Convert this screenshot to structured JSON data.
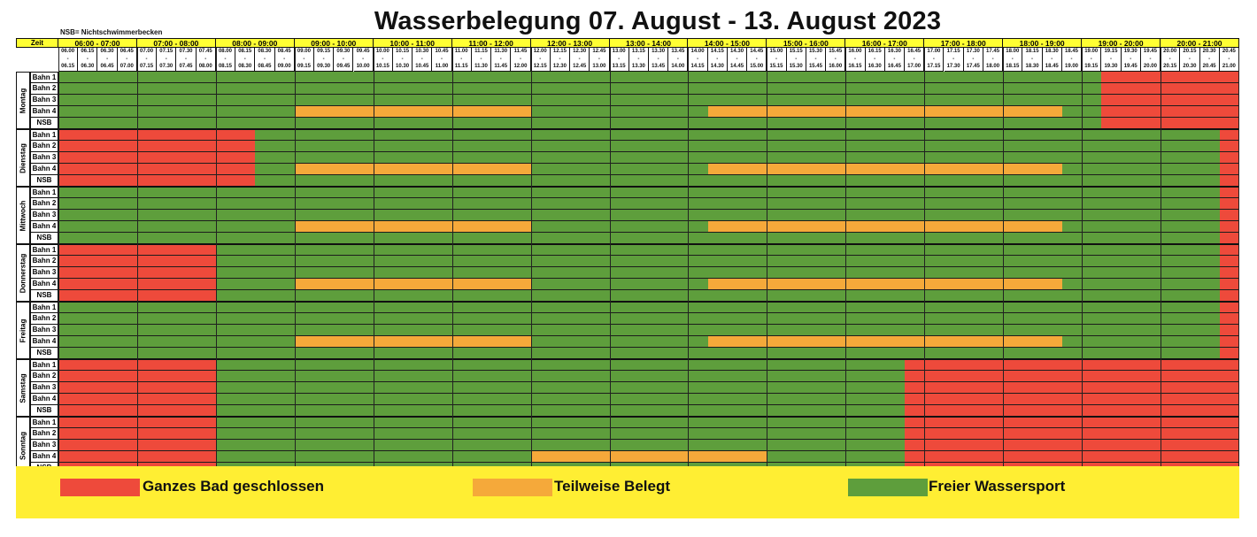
{
  "title": "Wasserbelegung 07. August - 13. August 2023",
  "nsb_note": "NSB= Nichtschwimmerbecken",
  "zeit_label": "Zeit",
  "colors": {
    "closed": "#ee4a3b",
    "partial": "#f5a93a",
    "free": "#5e9e3c",
    "header": "#ffff33",
    "legend_bg": "#ffee33"
  },
  "hours": [
    "06:00 - 07:00",
    "07:00 - 08:00",
    "08:00 - 09:00",
    "09:00 - 10:00",
    "10:00 - 11:00",
    "11:00 - 12:00",
    "12:00 - 13:00",
    "13:00 - 14:00",
    "14:00 - 15:00",
    "15:00 - 16:00",
    "16:00 - 17:00",
    "17:00 - 18:00",
    "18:00 - 19:00",
    "19:00 - 20:00",
    "20:00 - 21:00"
  ],
  "slots": [
    {
      "from": "06.00",
      "to": "06.15"
    },
    {
      "from": "06.15",
      "to": "06.30"
    },
    {
      "from": "06.30",
      "to": "06.45"
    },
    {
      "from": "06.45",
      "to": "07.00"
    },
    {
      "from": "07.00",
      "to": "07.15"
    },
    {
      "from": "07.15",
      "to": "07.30"
    },
    {
      "from": "07.30",
      "to": "07.45"
    },
    {
      "from": "07.45",
      "to": "08.00"
    },
    {
      "from": "08.00",
      "to": "08.15"
    },
    {
      "from": "08.15",
      "to": "08.30"
    },
    {
      "from": "08.30",
      "to": "08.45"
    },
    {
      "from": "08.45",
      "to": "09.00"
    },
    {
      "from": "09.00",
      "to": "09.15"
    },
    {
      "from": "09.15",
      "to": "09.30"
    },
    {
      "from": "09.30",
      "to": "09.45"
    },
    {
      "from": "09.45",
      "to": "10.00"
    },
    {
      "from": "10.00",
      "to": "10.15"
    },
    {
      "from": "10.15",
      "to": "10.30"
    },
    {
      "from": "10.30",
      "to": "10.45"
    },
    {
      "from": "10.45",
      "to": "11.00"
    },
    {
      "from": "11.00",
      "to": "11.15"
    },
    {
      "from": "11.15",
      "to": "11.30"
    },
    {
      "from": "11.30",
      "to": "11.45"
    },
    {
      "from": "11.45",
      "to": "12.00"
    },
    {
      "from": "12.00",
      "to": "12.15"
    },
    {
      "from": "12.15",
      "to": "12.30"
    },
    {
      "from": "12.30",
      "to": "12.45"
    },
    {
      "from": "12.45",
      "to": "13.00"
    },
    {
      "from": "13.00",
      "to": "13.15"
    },
    {
      "from": "13.15",
      "to": "13.30"
    },
    {
      "from": "13.30",
      "to": "13.45"
    },
    {
      "from": "13.45",
      "to": "14.00"
    },
    {
      "from": "14.00",
      "to": "14.15"
    },
    {
      "from": "14.15",
      "to": "14.30"
    },
    {
      "from": "14.30",
      "to": "14.45"
    },
    {
      "from": "14.45",
      "to": "15.00"
    },
    {
      "from": "15.00",
      "to": "15.15"
    },
    {
      "from": "15.15",
      "to": "15.30"
    },
    {
      "from": "15.30",
      "to": "15.45"
    },
    {
      "from": "15.45",
      "to": "16.00"
    },
    {
      "from": "16.00",
      "to": "16.15"
    },
    {
      "from": "16.15",
      "to": "16.30"
    },
    {
      "from": "16.30",
      "to": "16.45"
    },
    {
      "from": "16.45",
      "to": "17.00"
    },
    {
      "from": "17.00",
      "to": "17.15"
    },
    {
      "from": "17.15",
      "to": "17.30"
    },
    {
      "from": "17.30",
      "to": "17.45"
    },
    {
      "from": "17.45",
      "to": "18.00"
    },
    {
      "from": "18.00",
      "to": "18.15"
    },
    {
      "from": "18.15",
      "to": "18.30"
    },
    {
      "from": "18.30",
      "to": "18.45"
    },
    {
      "from": "18.45",
      "to": "19.00"
    },
    {
      "from": "19.00",
      "to": "19.15"
    },
    {
      "from": "19.15",
      "to": "19.30"
    },
    {
      "from": "19.30",
      "to": "19.45"
    },
    {
      "from": "19.45",
      "to": "20.00"
    },
    {
      "from": "20.00",
      "to": "20.15"
    },
    {
      "from": "20.15",
      "to": "20.30"
    },
    {
      "from": "20.30",
      "to": "20.45"
    },
    {
      "from": "20.45",
      "to": "21.00"
    }
  ],
  "lanes": [
    "Bahn 1",
    "Bahn 2",
    "Bahn 3",
    "Bahn 4",
    "NSB"
  ],
  "days": [
    {
      "name": "Montag",
      "lanes": [
        [
          {
            "s": 0,
            "e": 53,
            "st": "free"
          },
          {
            "s": 53,
            "e": 60,
            "st": "closed"
          }
        ],
        [
          {
            "s": 0,
            "e": 53,
            "st": "free"
          },
          {
            "s": 53,
            "e": 60,
            "st": "closed"
          }
        ],
        [
          {
            "s": 0,
            "e": 53,
            "st": "free"
          },
          {
            "s": 53,
            "e": 60,
            "st": "closed"
          }
        ],
        [
          {
            "s": 0,
            "e": 12,
            "st": "free"
          },
          {
            "s": 12,
            "e": 24,
            "st": "partial"
          },
          {
            "s": 24,
            "e": 33,
            "st": "free"
          },
          {
            "s": 33,
            "e": 51,
            "st": "partial"
          },
          {
            "s": 51,
            "e": 53,
            "st": "free"
          },
          {
            "s": 53,
            "e": 60,
            "st": "closed"
          }
        ],
        [
          {
            "s": 0,
            "e": 53,
            "st": "free"
          },
          {
            "s": 53,
            "e": 60,
            "st": "closed"
          }
        ]
      ]
    },
    {
      "name": "Dienstag",
      "lanes": [
        [
          {
            "s": 0,
            "e": 10,
            "st": "closed"
          },
          {
            "s": 10,
            "e": 59,
            "st": "free"
          },
          {
            "s": 59,
            "e": 60,
            "st": "closed"
          }
        ],
        [
          {
            "s": 0,
            "e": 10,
            "st": "closed"
          },
          {
            "s": 10,
            "e": 59,
            "st": "free"
          },
          {
            "s": 59,
            "e": 60,
            "st": "closed"
          }
        ],
        [
          {
            "s": 0,
            "e": 10,
            "st": "closed"
          },
          {
            "s": 10,
            "e": 59,
            "st": "free"
          },
          {
            "s": 59,
            "e": 60,
            "st": "closed"
          }
        ],
        [
          {
            "s": 0,
            "e": 10,
            "st": "closed"
          },
          {
            "s": 10,
            "e": 12,
            "st": "free"
          },
          {
            "s": 12,
            "e": 24,
            "st": "partial"
          },
          {
            "s": 24,
            "e": 33,
            "st": "free"
          },
          {
            "s": 33,
            "e": 51,
            "st": "partial"
          },
          {
            "s": 51,
            "e": 59,
            "st": "free"
          },
          {
            "s": 59,
            "e": 60,
            "st": "closed"
          }
        ],
        [
          {
            "s": 0,
            "e": 10,
            "st": "closed"
          },
          {
            "s": 10,
            "e": 59,
            "st": "free"
          },
          {
            "s": 59,
            "e": 60,
            "st": "closed"
          }
        ]
      ]
    },
    {
      "name": "Mittwoch",
      "lanes": [
        [
          {
            "s": 0,
            "e": 59,
            "st": "free"
          },
          {
            "s": 59,
            "e": 60,
            "st": "closed"
          }
        ],
        [
          {
            "s": 0,
            "e": 59,
            "st": "free"
          },
          {
            "s": 59,
            "e": 60,
            "st": "closed"
          }
        ],
        [
          {
            "s": 0,
            "e": 59,
            "st": "free"
          },
          {
            "s": 59,
            "e": 60,
            "st": "closed"
          }
        ],
        [
          {
            "s": 0,
            "e": 12,
            "st": "free"
          },
          {
            "s": 12,
            "e": 24,
            "st": "partial"
          },
          {
            "s": 24,
            "e": 33,
            "st": "free"
          },
          {
            "s": 33,
            "e": 51,
            "st": "partial"
          },
          {
            "s": 51,
            "e": 59,
            "st": "free"
          },
          {
            "s": 59,
            "e": 60,
            "st": "closed"
          }
        ],
        [
          {
            "s": 0,
            "e": 59,
            "st": "free"
          },
          {
            "s": 59,
            "e": 60,
            "st": "closed"
          }
        ]
      ]
    },
    {
      "name": "Donnerstag",
      "lanes": [
        [
          {
            "s": 0,
            "e": 8,
            "st": "closed"
          },
          {
            "s": 8,
            "e": 59,
            "st": "free"
          },
          {
            "s": 59,
            "e": 60,
            "st": "closed"
          }
        ],
        [
          {
            "s": 0,
            "e": 8,
            "st": "closed"
          },
          {
            "s": 8,
            "e": 59,
            "st": "free"
          },
          {
            "s": 59,
            "e": 60,
            "st": "closed"
          }
        ],
        [
          {
            "s": 0,
            "e": 8,
            "st": "closed"
          },
          {
            "s": 8,
            "e": 59,
            "st": "free"
          },
          {
            "s": 59,
            "e": 60,
            "st": "closed"
          }
        ],
        [
          {
            "s": 0,
            "e": 8,
            "st": "closed"
          },
          {
            "s": 8,
            "e": 12,
            "st": "free"
          },
          {
            "s": 12,
            "e": 24,
            "st": "partial"
          },
          {
            "s": 24,
            "e": 33,
            "st": "free"
          },
          {
            "s": 33,
            "e": 51,
            "st": "partial"
          },
          {
            "s": 51,
            "e": 59,
            "st": "free"
          },
          {
            "s": 59,
            "e": 60,
            "st": "closed"
          }
        ],
        [
          {
            "s": 0,
            "e": 8,
            "st": "closed"
          },
          {
            "s": 8,
            "e": 59,
            "st": "free"
          },
          {
            "s": 59,
            "e": 60,
            "st": "closed"
          }
        ]
      ]
    },
    {
      "name": "Freitag",
      "lanes": [
        [
          {
            "s": 0,
            "e": 59,
            "st": "free"
          },
          {
            "s": 59,
            "e": 60,
            "st": "closed"
          }
        ],
        [
          {
            "s": 0,
            "e": 59,
            "st": "free"
          },
          {
            "s": 59,
            "e": 60,
            "st": "closed"
          }
        ],
        [
          {
            "s": 0,
            "e": 59,
            "st": "free"
          },
          {
            "s": 59,
            "e": 60,
            "st": "closed"
          }
        ],
        [
          {
            "s": 0,
            "e": 12,
            "st": "free"
          },
          {
            "s": 12,
            "e": 24,
            "st": "partial"
          },
          {
            "s": 24,
            "e": 33,
            "st": "free"
          },
          {
            "s": 33,
            "e": 51,
            "st": "partial"
          },
          {
            "s": 51,
            "e": 59,
            "st": "free"
          },
          {
            "s": 59,
            "e": 60,
            "st": "closed"
          }
        ],
        [
          {
            "s": 0,
            "e": 59,
            "st": "free"
          },
          {
            "s": 59,
            "e": 60,
            "st": "closed"
          }
        ]
      ]
    },
    {
      "name": "Samstag",
      "lanes": [
        [
          {
            "s": 0,
            "e": 8,
            "st": "closed"
          },
          {
            "s": 8,
            "e": 43,
            "st": "free"
          },
          {
            "s": 43,
            "e": 60,
            "st": "closed"
          }
        ],
        [
          {
            "s": 0,
            "e": 8,
            "st": "closed"
          },
          {
            "s": 8,
            "e": 43,
            "st": "free"
          },
          {
            "s": 43,
            "e": 60,
            "st": "closed"
          }
        ],
        [
          {
            "s": 0,
            "e": 8,
            "st": "closed"
          },
          {
            "s": 8,
            "e": 43,
            "st": "free"
          },
          {
            "s": 43,
            "e": 60,
            "st": "closed"
          }
        ],
        [
          {
            "s": 0,
            "e": 8,
            "st": "closed"
          },
          {
            "s": 8,
            "e": 43,
            "st": "free"
          },
          {
            "s": 43,
            "e": 60,
            "st": "closed"
          }
        ],
        [
          {
            "s": 0,
            "e": 8,
            "st": "closed"
          },
          {
            "s": 8,
            "e": 43,
            "st": "free"
          },
          {
            "s": 43,
            "e": 60,
            "st": "closed"
          }
        ]
      ]
    },
    {
      "name": "Sonntag",
      "lanes": [
        [
          {
            "s": 0,
            "e": 8,
            "st": "closed"
          },
          {
            "s": 8,
            "e": 43,
            "st": "free"
          },
          {
            "s": 43,
            "e": 60,
            "st": "closed"
          }
        ],
        [
          {
            "s": 0,
            "e": 8,
            "st": "closed"
          },
          {
            "s": 8,
            "e": 43,
            "st": "free"
          },
          {
            "s": 43,
            "e": 60,
            "st": "closed"
          }
        ],
        [
          {
            "s": 0,
            "e": 8,
            "st": "closed"
          },
          {
            "s": 8,
            "e": 43,
            "st": "free"
          },
          {
            "s": 43,
            "e": 60,
            "st": "closed"
          }
        ],
        [
          {
            "s": 0,
            "e": 8,
            "st": "closed"
          },
          {
            "s": 8,
            "e": 24,
            "st": "free"
          },
          {
            "s": 24,
            "e": 36,
            "st": "partial"
          },
          {
            "s": 36,
            "e": 43,
            "st": "free"
          },
          {
            "s": 43,
            "e": 60,
            "st": "closed"
          }
        ],
        [
          {
            "s": 0,
            "e": 8,
            "st": "closed"
          },
          {
            "s": 8,
            "e": 43,
            "st": "free"
          },
          {
            "s": 43,
            "e": 60,
            "st": "closed"
          }
        ]
      ]
    }
  ],
  "legend": [
    {
      "label": "Ganzes Bad geschlossen",
      "status": "closed"
    },
    {
      "label": "Teilweise Belegt",
      "status": "partial"
    },
    {
      "label": "Freier Wassersport",
      "status": "free"
    }
  ]
}
